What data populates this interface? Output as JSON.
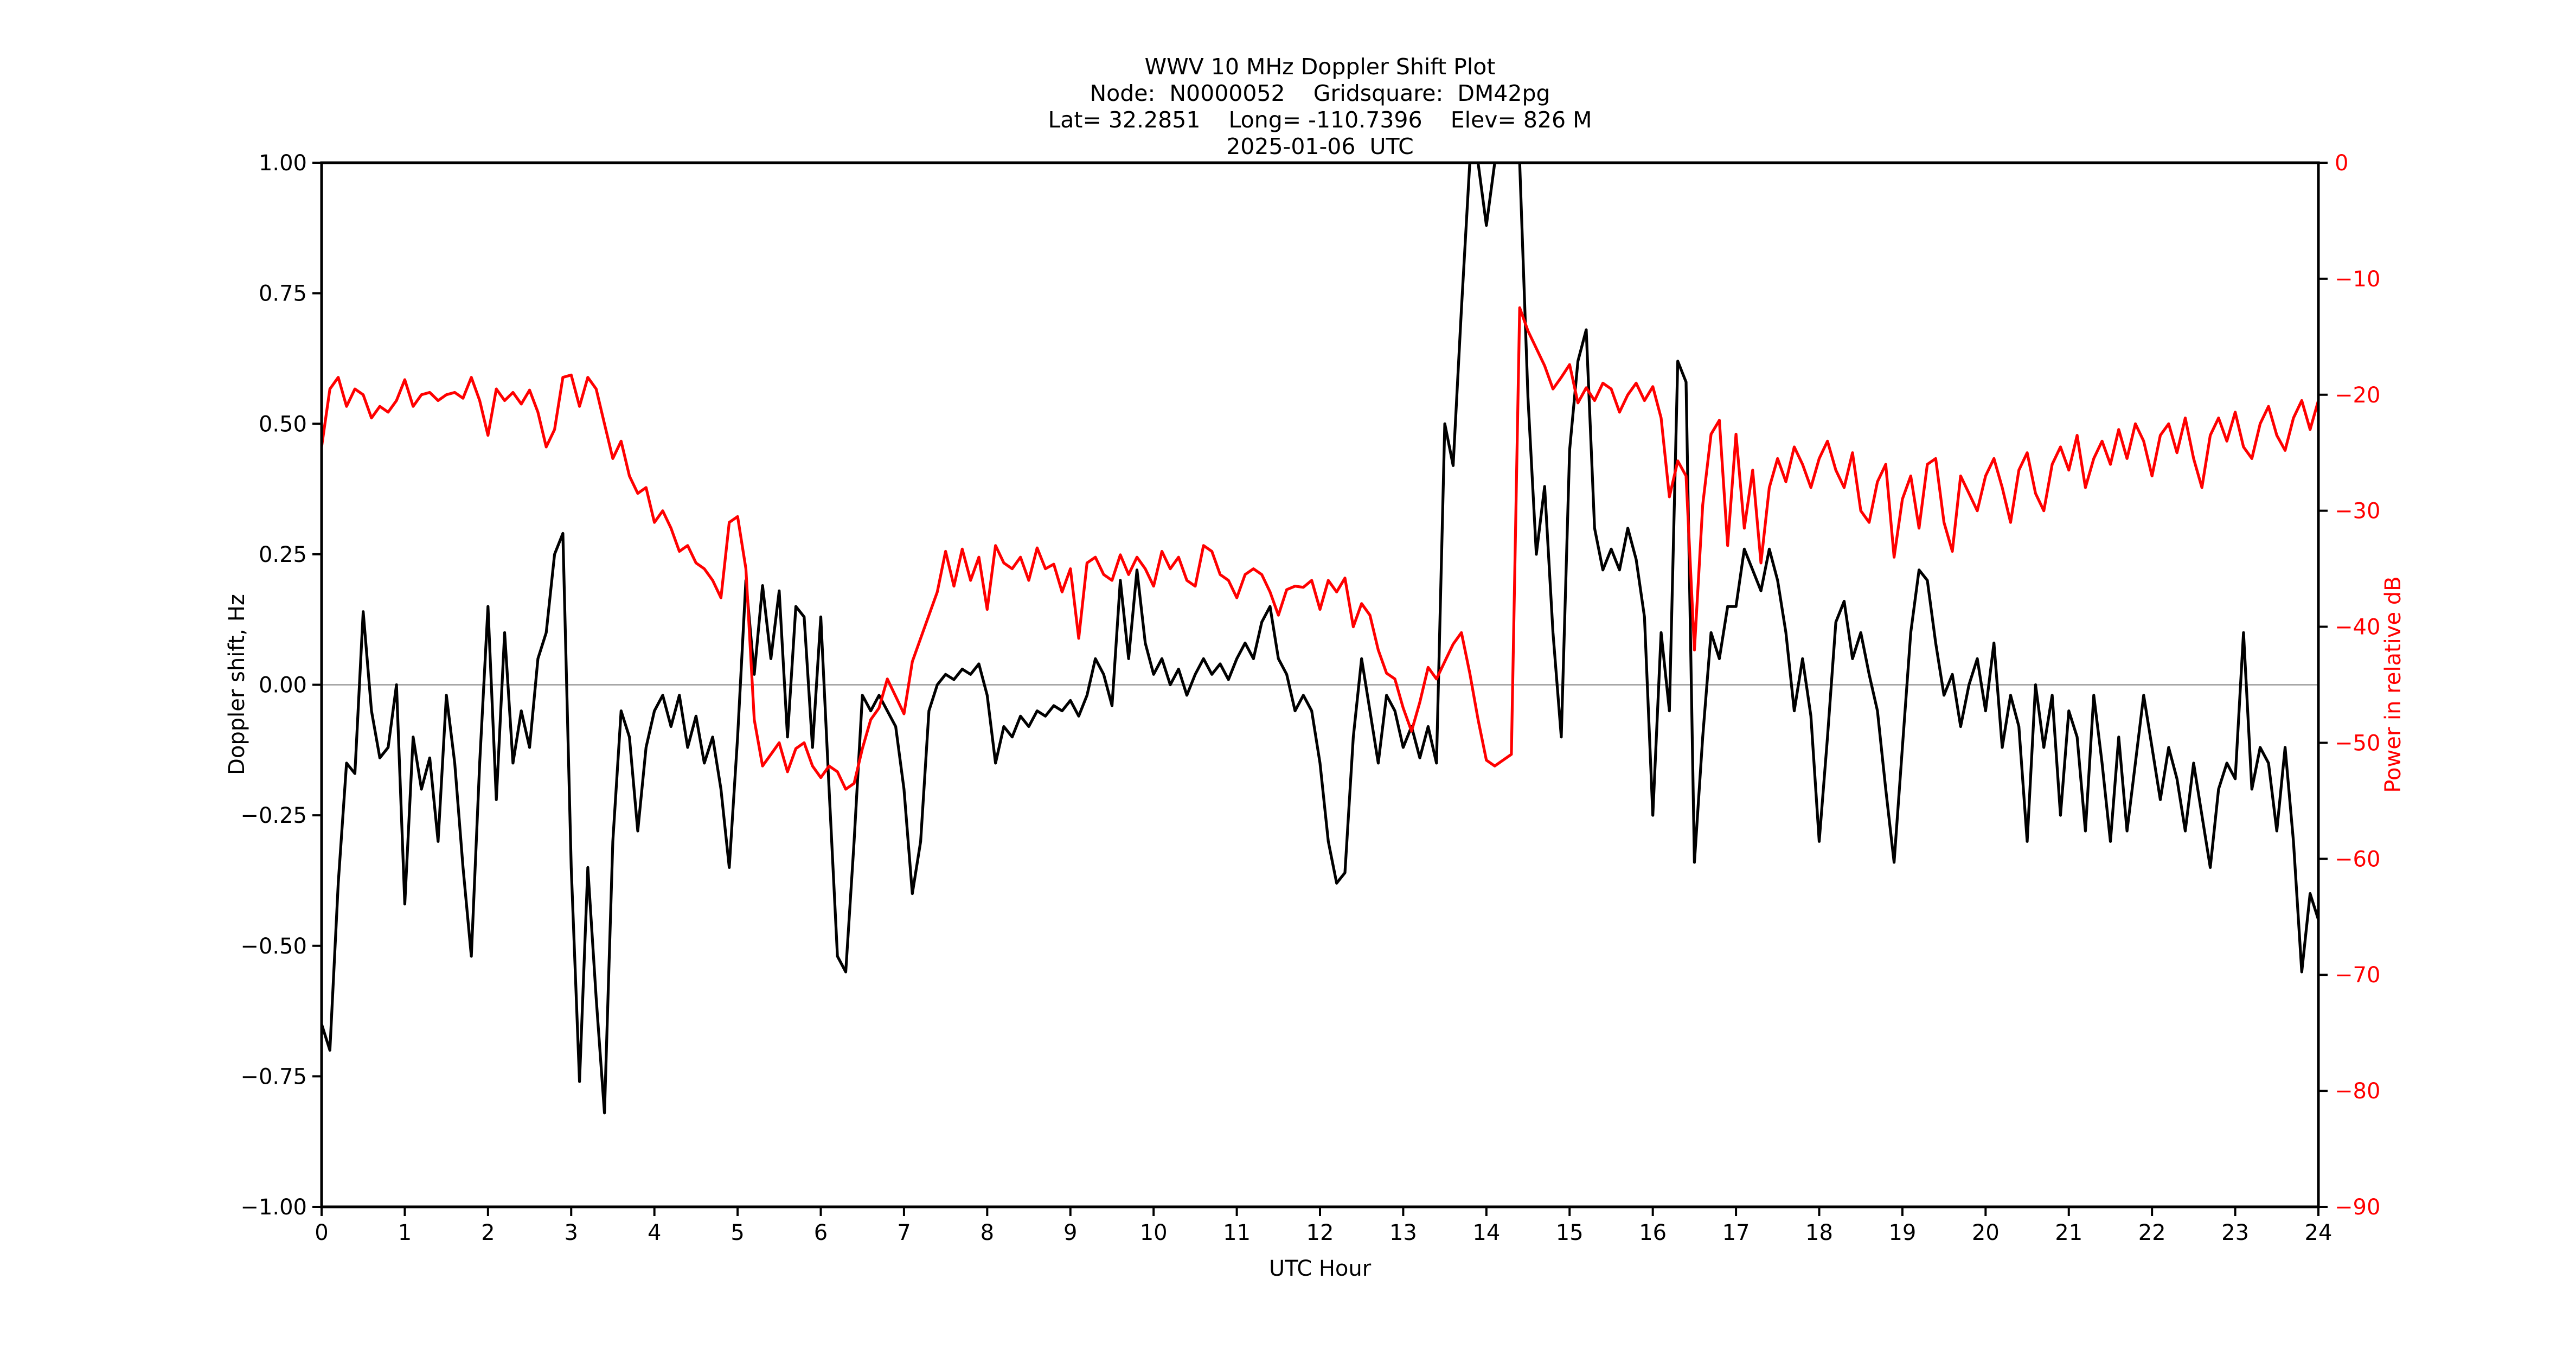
{
  "figure": {
    "background": "#ffffff"
  },
  "header": {
    "line1": "WWV 10 MHz Doppler Shift Plot",
    "line2": "Node:  N0000052    Gridsquare:  DM42pg",
    "line3": "Lat= 32.2851    Long= -110.7396    Elev= 826 M",
    "line4": "2025-01-06  UTC"
  },
  "axes": {
    "x": {
      "label": "UTC Hour",
      "ticks": [
        "0",
        "1",
        "2",
        "3",
        "4",
        "5",
        "6",
        "7",
        "8",
        "9",
        "10",
        "11",
        "12",
        "13",
        "14",
        "15",
        "16",
        "17",
        "18",
        "19",
        "20",
        "21",
        "22",
        "23",
        "24"
      ],
      "color": "#000000"
    },
    "y_left": {
      "label": "Doppler shift, Hz",
      "ticks": [
        "1.00",
        "0.75",
        "0.50",
        "0.25",
        "0.00",
        "−0.25",
        "−0.50",
        "−0.75",
        "−1.00"
      ],
      "color": "#000000"
    },
    "y_right": {
      "label": "Power in relative dB",
      "ticks": [
        "0",
        "−10",
        "−20",
        "−30",
        "−40",
        "−50",
        "−60",
        "−70",
        "−80",
        "−90"
      ],
      "color": "#ff0000"
    }
  },
  "chart_data": {
    "type": "line",
    "title": "WWV 10 MHz Doppler Shift Plot",
    "subtitle_lines": [
      "Node:  N0000052    Gridsquare:  DM42pg",
      "Lat= 32.2851    Long= -110.7396    Elev= 826 M",
      "2025-01-06  UTC"
    ],
    "xlabel": "UTC Hour",
    "ylabel_left": "Doppler shift, Hz",
    "ylabel_right": "Power in relative dB",
    "x_range": [
      0,
      24
    ],
    "y_left_range": [
      -1.0,
      1.0
    ],
    "y_right_range": [
      -90,
      0
    ],
    "x_ticks": [
      0,
      1,
      2,
      3,
      4,
      5,
      6,
      7,
      8,
      9,
      10,
      11,
      12,
      13,
      14,
      15,
      16,
      17,
      18,
      19,
      20,
      21,
      22,
      23,
      24
    ],
    "y_left_ticks": [
      1.0,
      0.75,
      0.5,
      0.25,
      0.0,
      -0.25,
      -0.5,
      -0.75,
      -1.0
    ],
    "y_right_ticks": [
      0,
      -10,
      -20,
      -30,
      -40,
      -50,
      -60,
      -70,
      -80,
      -90
    ],
    "grid": "horizontal zero line only",
    "legend": "none",
    "zero_line_left_value": 0.0,
    "line_colors": {
      "doppler": "#000000",
      "power": "#ff0000"
    },
    "x_start": 0.0,
    "x_step": 0.1,
    "series": [
      {
        "name": "Doppler shift, Hz",
        "axis": "left",
        "color": "#000000",
        "values": [
          -0.65,
          -0.7,
          -0.38,
          -0.15,
          -0.17,
          0.14,
          -0.05,
          -0.14,
          -0.12,
          0.0,
          -0.42,
          -0.1,
          -0.2,
          -0.14,
          -0.3,
          -0.02,
          -0.15,
          -0.35,
          -0.52,
          -0.15,
          0.15,
          -0.22,
          0.1,
          -0.15,
          -0.05,
          -0.12,
          0.05,
          0.1,
          0.25,
          0.29,
          -0.35,
          -0.76,
          -0.35,
          -0.6,
          -0.82,
          -0.3,
          -0.05,
          -0.1,
          -0.28,
          -0.12,
          -0.05,
          -0.02,
          -0.08,
          -0.02,
          -0.12,
          -0.06,
          -0.15,
          -0.1,
          -0.2,
          -0.35,
          -0.1,
          0.2,
          0.02,
          0.19,
          0.05,
          0.18,
          -0.1,
          0.15,
          0.13,
          -0.12,
          0.13,
          -0.2,
          -0.52,
          -0.55,
          -0.3,
          -0.02,
          -0.05,
          -0.02,
          -0.05,
          -0.08,
          -0.2,
          -0.4,
          -0.3,
          -0.05,
          0.0,
          0.02,
          0.01,
          0.03,
          0.02,
          0.04,
          -0.02,
          -0.15,
          -0.08,
          -0.1,
          -0.06,
          -0.08,
          -0.05,
          -0.06,
          -0.04,
          -0.05,
          -0.03,
          -0.06,
          -0.02,
          0.05,
          0.02,
          -0.04,
          0.2,
          0.05,
          0.22,
          0.08,
          0.02,
          0.05,
          0.0,
          0.03,
          -0.02,
          0.02,
          0.05,
          0.02,
          0.04,
          0.01,
          0.05,
          0.08,
          0.05,
          0.12,
          0.15,
          0.05,
          0.02,
          -0.05,
          -0.02,
          -0.05,
          -0.15,
          -0.3,
          -0.38,
          -0.36,
          -0.1,
          0.05,
          -0.05,
          -0.15,
          -0.02,
          -0.05,
          -0.12,
          -0.08,
          -0.14,
          -0.08,
          -0.15,
          0.5,
          0.42,
          0.72,
          1.0,
          1.0,
          0.88,
          1.0,
          1.0,
          1.0,
          1.0,
          0.55,
          0.25,
          0.38,
          0.1,
          -0.1,
          0.45,
          0.62,
          0.68,
          0.3,
          0.22,
          0.26,
          0.22,
          0.3,
          0.24,
          0.13,
          -0.25,
          0.1,
          -0.05,
          0.62,
          0.58,
          -0.34,
          -0.1,
          0.1,
          0.05,
          0.15,
          0.15,
          0.26,
          0.22,
          0.18,
          0.26,
          0.2,
          0.1,
          -0.05,
          0.05,
          -0.06,
          -0.3,
          -0.1,
          0.12,
          0.16,
          0.05,
          0.1,
          0.02,
          -0.05,
          -0.2,
          -0.34,
          -0.12,
          0.1,
          0.22,
          0.2,
          0.08,
          -0.02,
          0.02,
          -0.08,
          0.0,
          0.05,
          -0.05,
          0.08,
          -0.12,
          -0.02,
          -0.08,
          -0.3,
          0.0,
          -0.12,
          -0.02,
          -0.25,
          -0.05,
          -0.1,
          -0.28,
          -0.02,
          -0.15,
          -0.3,
          -0.1,
          -0.28,
          -0.15,
          -0.02,
          -0.12,
          -0.22,
          -0.12,
          -0.18,
          -0.28,
          -0.15,
          -0.25,
          -0.35,
          -0.2,
          -0.15,
          -0.18,
          0.1,
          -0.2,
          -0.12,
          -0.15,
          -0.28,
          -0.12,
          -0.3,
          -0.55,
          -0.4,
          -0.45
        ]
      },
      {
        "name": "Power in relative dB",
        "axis": "right",
        "color": "#ff0000",
        "values": [
          -24.5,
          -19.5,
          -18.5,
          -21.0,
          -19.5,
          -20.0,
          -22.0,
          -21.0,
          -21.5,
          -20.5,
          -18.7,
          -21.0,
          -20.0,
          -19.8,
          -20.5,
          -20.0,
          -19.8,
          -20.3,
          -18.5,
          -20.5,
          -23.5,
          -19.5,
          -20.5,
          -19.8,
          -20.8,
          -19.6,
          -21.5,
          -24.5,
          -23.0,
          -18.5,
          -18.3,
          -21.0,
          -18.5,
          -19.5,
          -22.5,
          -25.5,
          -24.0,
          -27.0,
          -28.5,
          -28.0,
          -31.0,
          -30.0,
          -31.5,
          -33.5,
          -33.0,
          -34.5,
          -35.0,
          -36.0,
          -37.5,
          -31.0,
          -30.5,
          -35.0,
          -48.0,
          -52.0,
          -51.0,
          -50.0,
          -52.5,
          -50.5,
          -50.0,
          -52.0,
          -53.0,
          -52.0,
          -52.5,
          -54.0,
          -53.5,
          -50.5,
          -48.0,
          -47.0,
          -44.5,
          -46.0,
          -47.5,
          -43.0,
          -41.0,
          -39.0,
          -37.0,
          -33.5,
          -36.5,
          -33.3,
          -36.0,
          -34.0,
          -38.5,
          -33.0,
          -34.5,
          -35.0,
          -34.0,
          -36.0,
          -33.2,
          -35.0,
          -34.6,
          -37.0,
          -35.0,
          -41.0,
          -34.5,
          -34.0,
          -35.5,
          -36.0,
          -33.8,
          -35.5,
          -34.0,
          -35.0,
          -36.5,
          -33.5,
          -35.0,
          -34.0,
          -36.0,
          -36.5,
          -33.0,
          -33.5,
          -35.5,
          -36.0,
          -37.5,
          -35.5,
          -35.0,
          -35.5,
          -37.0,
          -39.0,
          -36.8,
          -36.5,
          -36.6,
          -36.0,
          -38.5,
          -36.0,
          -37.0,
          -35.8,
          -40.0,
          -38.0,
          -39.0,
          -42.0,
          -44.0,
          -44.5,
          -47.0,
          -49.0,
          -46.5,
          -43.5,
          -44.5,
          -43.0,
          -41.5,
          -40.5,
          -44.0,
          -48.0,
          -51.5,
          -52.0,
          -51.5,
          -51.0,
          -12.5,
          -14.5,
          -16.0,
          -17.5,
          -19.5,
          -18.5,
          -17.4,
          -20.7,
          -19.4,
          -20.5,
          -19.0,
          -19.5,
          -21.5,
          -20.0,
          -19.0,
          -20.5,
          -19.3,
          -22.0,
          -28.8,
          -25.7,
          -27.0,
          -42.0,
          -29.5,
          -23.4,
          -22.2,
          -33.0,
          -23.4,
          -31.5,
          -26.5,
          -34.5,
          -28.0,
          -25.5,
          -27.5,
          -24.5,
          -26.0,
          -28.0,
          -25.5,
          -24.0,
          -26.5,
          -28.0,
          -25.0,
          -30.0,
          -31.0,
          -27.5,
          -26.0,
          -34.0,
          -29.0,
          -27.0,
          -31.5,
          -26.0,
          -25.5,
          -31.0,
          -33.5,
          -27.0,
          -28.5,
          -30.0,
          -27.0,
          -25.5,
          -28.0,
          -31.0,
          -26.5,
          -25.0,
          -28.5,
          -30.0,
          -26.0,
          -24.5,
          -26.5,
          -23.5,
          -28.0,
          -25.5,
          -24.0,
          -26.0,
          -23.0,
          -25.5,
          -22.5,
          -24.0,
          -27.0,
          -23.5,
          -22.5,
          -25.0,
          -22.0,
          -25.5,
          -28.0,
          -23.5,
          -22.0,
          -24.0,
          -21.5,
          -24.5,
          -25.5,
          -22.5,
          -21.0,
          -23.5,
          -24.8,
          -22.0,
          -20.5,
          -23.0,
          -20.5
        ]
      }
    ]
  }
}
